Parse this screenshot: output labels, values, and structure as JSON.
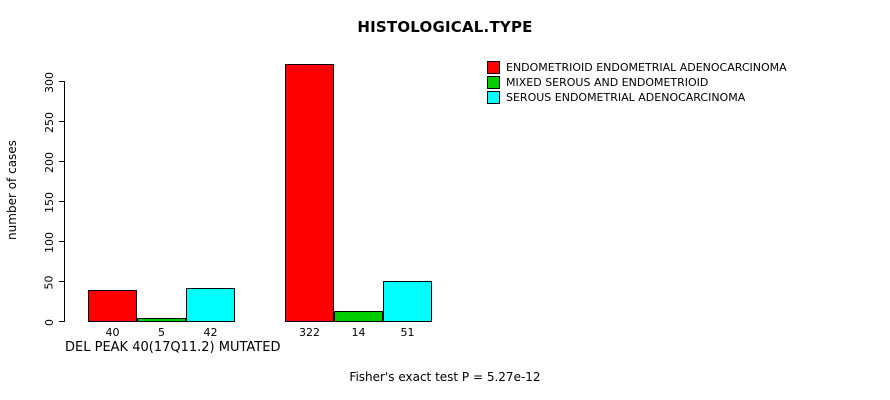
{
  "chart_data": {
    "type": "bar",
    "title": "HISTOLOGICAL.TYPE",
    "ylabel": "number of cases",
    "xlabel": "DEL PEAK 40(17Q11.2) MUTATED",
    "footer": "Fisher's exact test P = 5.27e-12",
    "yticks": [
      0,
      50,
      100,
      150,
      200,
      250,
      300
    ],
    "ylim": [
      0,
      337
    ],
    "grid": false,
    "legend_position": "top-right",
    "groups": 2,
    "series": [
      {
        "name": "ENDOMETRIOID ENDOMETRIAL ADENOCARCINOMA",
        "color": "#FF0000",
        "values": [
          40,
          322
        ]
      },
      {
        "name": "MIXED SEROUS AND ENDOMETRIOID",
        "color": "#00CC00",
        "values": [
          5,
          14
        ]
      },
      {
        "name": "SEROUS ENDOMETRIAL ADENOCARCINOMA",
        "color": "#00FFFF",
        "values": [
          42,
          51
        ]
      }
    ]
  }
}
